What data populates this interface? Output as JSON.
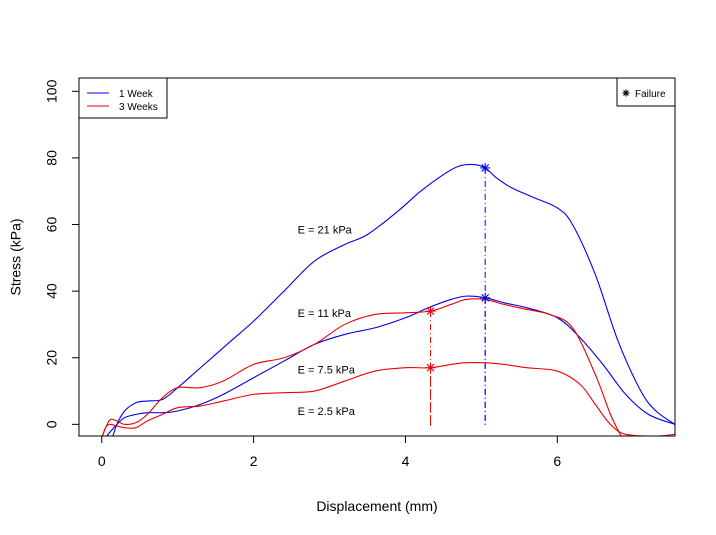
{
  "chart_data": {
    "type": "line",
    "title": "",
    "xlabel": "Displacement (mm)",
    "ylabel": "Stress (kPa)",
    "xlim": [
      -0.3,
      7.55
    ],
    "ylim": [
      -3.5,
      104
    ],
    "x_ticks": [
      0,
      2,
      4,
      6
    ],
    "y_ticks": [
      0,
      20,
      40,
      60,
      80,
      100
    ],
    "grid": false,
    "legend": [
      {
        "label": "1 Week",
        "color": "#0000ee"
      },
      {
        "label": "3 Weeks",
        "color": "#ee0000"
      }
    ],
    "failure_legend": {
      "label": "Failure",
      "symbol": "*"
    },
    "series": [
      {
        "group": "1 Week",
        "color": "#0000ee",
        "modulus": "E = 21 kPa",
        "x": [
          0.14,
          0.2,
          0.3,
          0.45,
          0.6,
          0.8,
          1.0,
          1.3,
          1.7,
          2.0,
          2.4,
          2.8,
          3.2,
          3.5,
          3.9,
          4.2,
          4.5,
          4.7,
          4.9,
          5.05,
          5.2,
          5.4,
          5.7,
          6.0,
          6.2,
          6.5,
          6.8,
          7.1,
          7.3,
          7.55
        ],
        "y": [
          -4,
          0,
          4,
          6.5,
          7,
          7.5,
          11,
          17,
          25,
          31,
          40,
          49,
          54,
          57,
          64,
          70,
          75,
          77.5,
          78,
          77,
          74,
          71,
          68,
          65,
          60,
          45,
          25,
          10,
          4,
          0
        ]
      },
      {
        "group": "1 Week",
        "color": "#0000ee",
        "modulus": "E = 11 kPa",
        "x": [
          0.05,
          0.12,
          0.2,
          0.3,
          0.45,
          0.6,
          0.8,
          1.0,
          1.3,
          1.6,
          2.0,
          2.4,
          2.8,
          3.2,
          3.6,
          4.0,
          4.3,
          4.6,
          4.8,
          5.05,
          5.3,
          5.6,
          6.0,
          6.3,
          6.6,
          6.9,
          7.2,
          7.55
        ],
        "y": [
          -4,
          -2,
          0,
          2,
          3,
          3.5,
          3.5,
          4,
          6,
          9,
          14,
          19,
          24,
          27,
          29,
          32,
          35,
          37.5,
          38.5,
          38,
          36.5,
          35,
          32,
          26,
          18,
          9,
          3,
          0
        ]
      },
      {
        "group": "3 Weeks",
        "color": "#ee0000",
        "modulus": "E = 7.5 kPa",
        "x": [
          0.0,
          0.07,
          0.12,
          0.2,
          0.3,
          0.45,
          0.6,
          0.8,
          1.0,
          1.3,
          1.6,
          2.0,
          2.4,
          2.8,
          3.2,
          3.6,
          4.0,
          4.33,
          4.6,
          4.8,
          5.05,
          5.3,
          5.6,
          5.9,
          6.2,
          6.5,
          6.7,
          6.85
        ],
        "y": [
          -4,
          0,
          1.5,
          1,
          0,
          0.5,
          3,
          8,
          11,
          11,
          13,
          18,
          20,
          24,
          30,
          33,
          33.5,
          34,
          36,
          37.5,
          37.5,
          36,
          34.5,
          33,
          29,
          15,
          3,
          -4
        ]
      },
      {
        "group": "3 Weeks",
        "color": "#ee0000",
        "modulus": "E = 2.5 kPa",
        "x": [
          0.0,
          0.05,
          0.1,
          0.2,
          0.3,
          0.45,
          0.6,
          0.8,
          1.0,
          1.3,
          1.6,
          2.0,
          2.4,
          2.8,
          3.2,
          3.6,
          4.0,
          4.33,
          4.6,
          4.8,
          5.05,
          5.3,
          5.6,
          6.0,
          6.3,
          6.5,
          6.7,
          6.9,
          7.3,
          7.55
        ],
        "y": [
          -4,
          -1,
          0,
          -0.5,
          -1,
          -1,
          1,
          3,
          5,
          5.5,
          7,
          9,
          9.5,
          10,
          13,
          16,
          17,
          17,
          18,
          18.5,
          18.5,
          18,
          17,
          16,
          12,
          6,
          0,
          -3,
          -3.5,
          -3
        ]
      }
    ],
    "failure_points": [
      {
        "group": "1 Week",
        "color": "#0000ee",
        "x": 5.05,
        "y": 77
      },
      {
        "group": "1 Week",
        "color": "#0000ee",
        "x": 5.05,
        "y": 38
      },
      {
        "group": "3 Weeks",
        "color": "#ee0000",
        "x": 4.33,
        "y": 34
      },
      {
        "group": "3 Weeks",
        "color": "#ee0000",
        "x": 4.33,
        "y": 17
      }
    ]
  }
}
